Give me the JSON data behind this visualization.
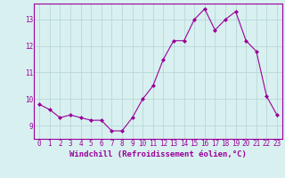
{
  "x": [
    0,
    1,
    2,
    3,
    4,
    5,
    6,
    7,
    8,
    9,
    10,
    11,
    12,
    13,
    14,
    15,
    16,
    17,
    18,
    19,
    20,
    21,
    22,
    23
  ],
  "y": [
    9.8,
    9.6,
    9.3,
    9.4,
    9.3,
    9.2,
    9.2,
    8.8,
    8.8,
    9.3,
    10.0,
    10.5,
    11.5,
    12.2,
    12.2,
    13.0,
    13.4,
    12.6,
    13.0,
    13.3,
    12.2,
    11.8,
    10.1,
    9.4
  ],
  "line_color": "#990099",
  "marker": "D",
  "marker_size": 2.0,
  "background_color": "#d8f0f0",
  "grid_color": "#b8d8d8",
  "ylim": [
    8.5,
    13.6
  ],
  "yticks": [
    9,
    10,
    11,
    12,
    13
  ],
  "xlabel": "Windchill (Refroidissement éolien,°C)",
  "tick_fontsize": 5.5,
  "xlabel_fontsize": 6.5
}
